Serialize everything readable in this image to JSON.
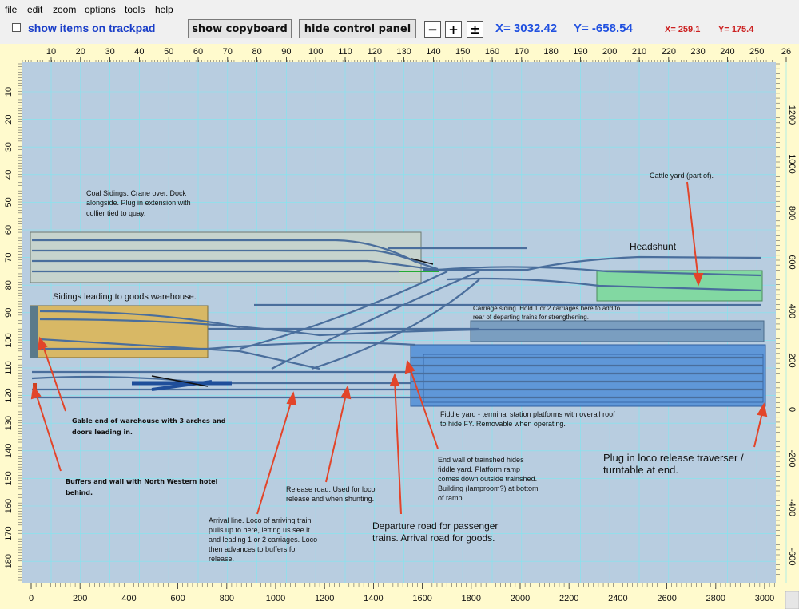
{
  "menu": [
    "file",
    "edit",
    "zoom",
    "options",
    "tools",
    "help"
  ],
  "toolbar": {
    "show_items_label": "show items on trackpad",
    "show_copyboard": "show copyboard",
    "hide_control_panel": "hide control panel",
    "zoom_out": "−",
    "zoom_in": "+",
    "zoom_fit": "±",
    "x_coord": "X= 3032.42",
    "y_coord": "Y= -658.54",
    "x_small": "X= 259.1",
    "y_small": "Y= 175.4"
  },
  "rulers": {
    "top": [
      "10",
      "20",
      "30",
      "40",
      "50",
      "60",
      "70",
      "80",
      "90",
      "100",
      "110",
      "120",
      "130",
      "140",
      "150",
      "160",
      "170",
      "180",
      "190",
      "200",
      "210",
      "220",
      "230",
      "240",
      "250",
      "26"
    ],
    "left": [
      "10",
      "20",
      "30",
      "40",
      "50",
      "60",
      "70",
      "80",
      "90",
      "100",
      "110",
      "120",
      "130",
      "140",
      "150",
      "160",
      "170",
      "180"
    ],
    "bottom": [
      "0",
      "200",
      "400",
      "600",
      "800",
      "1000",
      "1200",
      "1400",
      "1600",
      "1800",
      "2000",
      "2200",
      "2400",
      "2600",
      "2800",
      "3000"
    ],
    "right": [
      "1200",
      "1000",
      "800",
      "600",
      "400",
      "200",
      "0",
      "-200",
      "-400",
      "-600"
    ]
  },
  "annotations": {
    "coal": [
      "Coal Sidings. Crane over. Dock",
      "alongside. Plug in extension with",
      "collier tied to quay."
    ],
    "sidings_goods": "Sidings leading to goods warehouse.",
    "headshunt": "Headshunt",
    "cattle": "Cattle yard (part of).",
    "carriage": [
      "Carriage siding. Hold 1 or 2 carriages here to add to",
      "rear of departing trains for strengthening."
    ],
    "gable": [
      "Gable end of warehouse with 3 arches and",
      "doors leading in."
    ],
    "buffers": [
      "Buffers and wall with North Western hotel",
      "behind."
    ],
    "fiddle": [
      "Fiddle yard - terminal station platforms with overall roof",
      "to hide FY. Removable when operating."
    ],
    "endwall": [
      "End wall of trainshed hides",
      "fiddle yard. Platform ramp",
      "comes down outside trainshed.",
      "Building (lamproom?) at bottom",
      "of ramp."
    ],
    "release": [
      "Release road. Used for loco",
      "release and when shunting."
    ],
    "arrival": [
      "Arrival line. Loco of arriving train",
      "pulls up to here, letting us see it",
      "and leading 1 or 2 carriages. Loco",
      "then advances to buffers for",
      "release."
    ],
    "departure": [
      "Departure road for passenger",
      "trains. Arrival road for goods."
    ],
    "traverser": [
      "Plug in loco release traverser /",
      "turntable at end."
    ]
  }
}
